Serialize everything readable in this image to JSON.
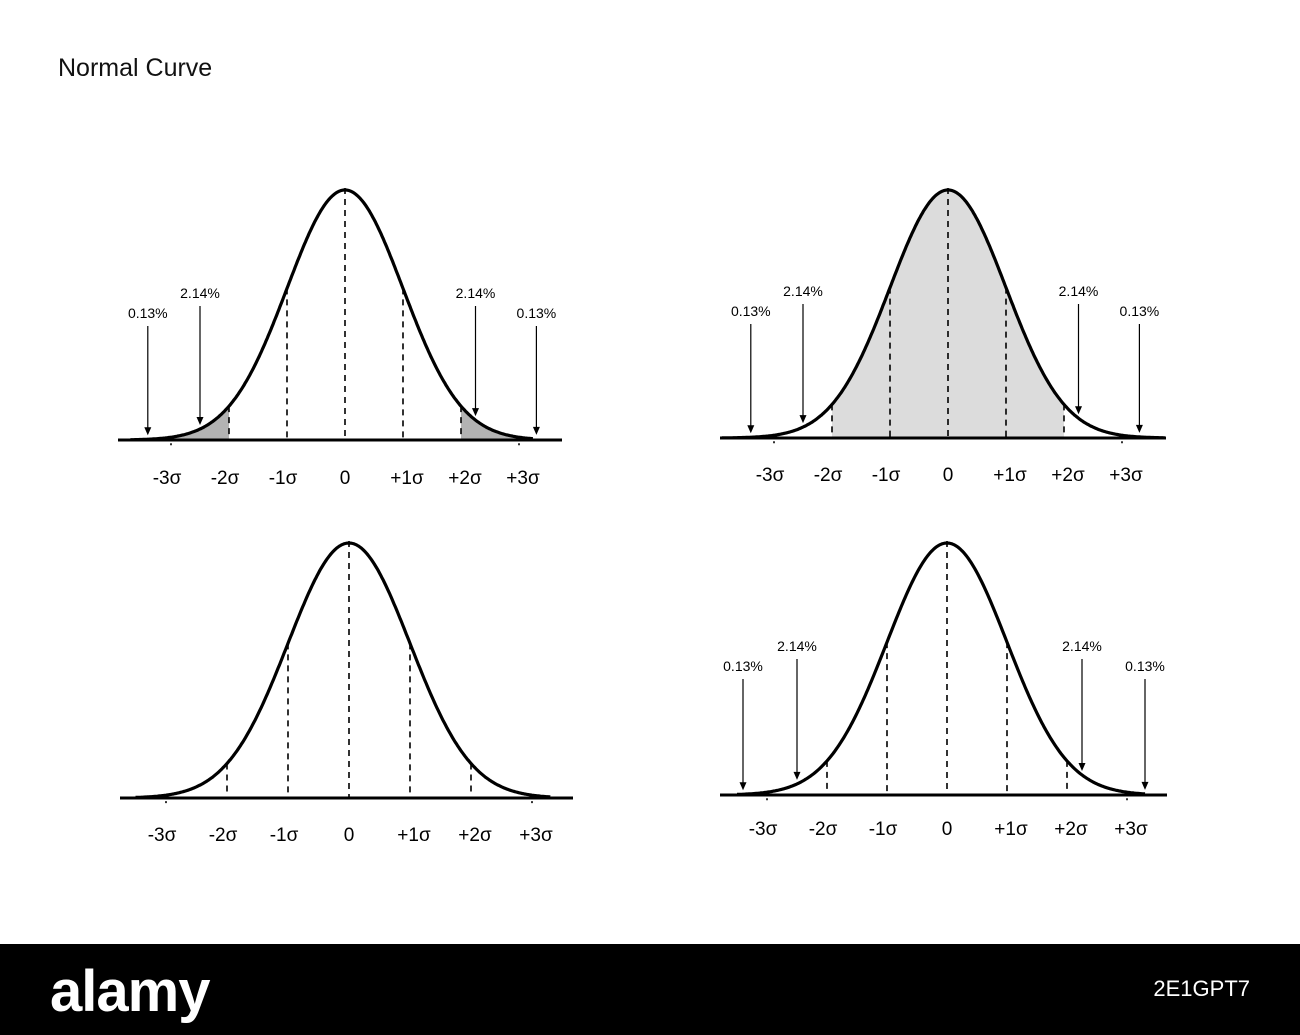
{
  "title": "Normal Curve",
  "chart_data": [
    {
      "type": "line",
      "function": "normal density",
      "x_ticks": [
        "-3σ",
        "-2σ",
        "-1σ",
        "0",
        "+1σ",
        "+2σ",
        "+3σ"
      ],
      "shaded": "tails beyond ±2σ",
      "annotations": [
        {
          "text": "0.13%",
          "x": -3.4
        },
        {
          "text": "2.14%",
          "x": -2.5
        },
        {
          "text": "2.14%",
          "x": 2.25
        },
        {
          "text": "0.13%",
          "x": 3.3
        }
      ]
    },
    {
      "type": "line",
      "function": "normal density",
      "x_ticks": [
        "-3σ",
        "-2σ",
        "-1σ",
        "0",
        "+1σ",
        "+2σ",
        "+3σ"
      ],
      "shaded": "between -2σ and +2σ",
      "annotations": [
        {
          "text": "0.13%",
          "x": -3.4
        },
        {
          "text": "2.14%",
          "x": -2.5
        },
        {
          "text": "2.14%",
          "x": 2.25
        },
        {
          "text": "0.13%",
          "x": 3.3
        }
      ]
    },
    {
      "type": "line",
      "function": "normal density",
      "x_ticks": [
        "-3σ",
        "-2σ",
        "-1σ",
        "0",
        "+1σ",
        "+2σ",
        "+3σ"
      ],
      "shaded": "none",
      "annotations": []
    },
    {
      "type": "line",
      "function": "normal density",
      "x_ticks": [
        "-3σ",
        "-2σ",
        "-1σ",
        "0",
        "+1σ",
        "+2σ",
        "+3σ"
      ],
      "shaded": "none",
      "annotations": [
        {
          "text": "0.13%",
          "x": -3.4
        },
        {
          "text": "2.14%",
          "x": -2.5
        },
        {
          "text": "2.14%",
          "x": 2.25
        },
        {
          "text": "0.13%",
          "x": 3.3
        }
      ]
    }
  ],
  "footer": {
    "brand": "alamy",
    "image_id": "2E1GPT7"
  }
}
